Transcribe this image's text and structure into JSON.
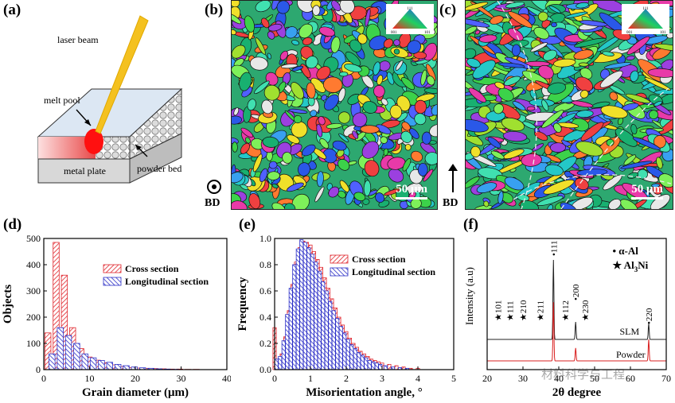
{
  "panel_labels": {
    "a": "(a)",
    "b": "(b)",
    "c": "(c)",
    "d": "(d)",
    "e": "(e)",
    "f": "(f)"
  },
  "schematic": {
    "laser_beam": "laser beam",
    "melt_pool": "melt pool",
    "metal_plate": "metal plate",
    "powder_bed": "powder bed"
  },
  "ebsd_b": {
    "scale": "50 μm",
    "direction": "BD",
    "ipf": {
      "top": "111",
      "left": "001",
      "right": "101"
    }
  },
  "ebsd_c": {
    "scale": "50 μm",
    "direction": "BD",
    "ipf": {
      "top": "111",
      "left": "001",
      "right": "101"
    }
  },
  "colors": {
    "cross": "#e0262d",
    "long": "#2b2fc7",
    "slm": "#222222",
    "powder": "#d92020"
  },
  "chart_data": [
    {
      "type": "bar",
      "panel": "d",
      "xlabel": "Grain diameter (μm)",
      "ylabel": "Objects",
      "xlim": [
        0,
        40
      ],
      "ylim": [
        0,
        500
      ],
      "xticks": [
        0,
        10,
        20,
        30,
        40
      ],
      "yticks": [
        0,
        100,
        200,
        300,
        400,
        500
      ],
      "bin_width": 1.8,
      "series": [
        {
          "name": "Cross section",
          "x": [
            0.9,
            2.7,
            4.5,
            6.3,
            8.1,
            9.9,
            11.7,
            13.5,
            15.3,
            17.1,
            18.9,
            20.7,
            22.5,
            24.3,
            26.1,
            27.9,
            29.7,
            31.5,
            33.3
          ],
          "values": [
            140,
            485,
            360,
            160,
            80,
            48,
            36,
            26,
            18,
            12,
            8,
            6,
            5,
            4,
            3,
            2,
            2,
            1,
            1
          ]
        },
        {
          "name": "Longitudinal section",
          "x": [
            1.8,
            3.6,
            5.4,
            7.2,
            9.0,
            10.8,
            12.6,
            14.4,
            16.2,
            18.0,
            19.8,
            21.6,
            23.4,
            25.2,
            27.0,
            28.8
          ],
          "values": [
            60,
            160,
            130,
            100,
            60,
            45,
            35,
            28,
            20,
            15,
            10,
            7,
            5,
            3,
            2,
            1
          ]
        }
      ]
    },
    {
      "type": "bar",
      "panel": "e",
      "xlabel": "Misorientation angle, °",
      "ylabel": "Frequency",
      "xlim": [
        0,
        5
      ],
      "ylim": [
        0,
        1.0
      ],
      "xticks": [
        0,
        1,
        2,
        3,
        4,
        5
      ],
      "yticks": [
        0.0,
        0.2,
        0.4,
        0.6,
        0.8,
        1.0
      ],
      "series": [
        {
          "name": "Cross section",
          "x": [
            0.0,
            0.1,
            0.2,
            0.3,
            0.4,
            0.5,
            0.6,
            0.7,
            0.8,
            0.9,
            1.0,
            1.1,
            1.2,
            1.3,
            1.4,
            1.5,
            1.6,
            1.7,
            1.8,
            1.9,
            2.0,
            2.1,
            2.2,
            2.3,
            2.4,
            2.5,
            2.6,
            2.7,
            2.8,
            2.9,
            3.0,
            3.2,
            3.4,
            3.6,
            3.8,
            4.0
          ],
          "values": [
            0.32,
            0.05,
            0.12,
            0.25,
            0.45,
            0.65,
            0.82,
            0.93,
            0.98,
            0.97,
            0.95,
            0.9,
            0.84,
            0.78,
            0.7,
            0.62,
            0.54,
            0.47,
            0.4,
            0.34,
            0.29,
            0.24,
            0.2,
            0.17,
            0.14,
            0.12,
            0.1,
            0.08,
            0.07,
            0.06,
            0.05,
            0.04,
            0.03,
            0.02,
            0.01,
            0.01
          ]
        },
        {
          "name": "Longitudinal section",
          "x": [
            0.05,
            0.15,
            0.25,
            0.35,
            0.45,
            0.55,
            0.65,
            0.75,
            0.85,
            0.95,
            1.05,
            1.15,
            1.25,
            1.35,
            1.45,
            1.55,
            1.65,
            1.75,
            1.85,
            1.95,
            2.05,
            2.15,
            2.25,
            2.35,
            2.45,
            2.55,
            2.65,
            2.75,
            2.85,
            2.95,
            3.1,
            3.3,
            3.5,
            3.7
          ],
          "values": [
            0.08,
            0.1,
            0.22,
            0.42,
            0.62,
            0.8,
            0.92,
            0.99,
            0.97,
            0.93,
            0.88,
            0.82,
            0.75,
            0.67,
            0.6,
            0.52,
            0.45,
            0.39,
            0.33,
            0.28,
            0.23,
            0.19,
            0.16,
            0.13,
            0.11,
            0.09,
            0.07,
            0.06,
            0.05,
            0.04,
            0.03,
            0.02,
            0.015,
            0.01
          ]
        }
      ]
    },
    {
      "type": "line",
      "panel": "f",
      "xlabel": "2θ degree",
      "ylabel": "Intensity (a.u)",
      "xlim": [
        20,
        70
      ],
      "xticks": [
        20,
        30,
        40,
        50,
        60,
        70
      ],
      "series": [
        {
          "name": "SLM",
          "peaks": [
            {
              "x": 38.5,
              "h": 1.0
            },
            {
              "x": 44.7,
              "h": 0.22
            },
            {
              "x": 65.1,
              "h": 0.2
            }
          ]
        },
        {
          "name": "Powder",
          "peaks": [
            {
              "x": 38.5,
              "h": 0.82
            },
            {
              "x": 44.7,
              "h": 0.18
            },
            {
              "x": 65.1,
              "h": 0.3
            }
          ]
        }
      ],
      "legend": [
        {
          "symbol": "•",
          "label": "α-Al"
        },
        {
          "symbol": "★",
          "label": "Al",
          "sub": "3",
          "tail": "Ni"
        }
      ],
      "annotations": [
        {
          "text": "★101",
          "x": 23.0
        },
        {
          "text": "★111",
          "x": 26.3
        },
        {
          "text": "★210",
          "x": 30.0
        },
        {
          "text": "★211",
          "x": 34.8
        },
        {
          "text": "•111",
          "x": 38.5
        },
        {
          "text": "★112",
          "x": 41.8
        },
        {
          "text": "•200",
          "x": 44.7
        },
        {
          "text": "★230",
          "x": 47.3
        },
        {
          "text": "•220",
          "x": 65.1
        }
      ]
    }
  ],
  "watermark": "材料科学与工程"
}
